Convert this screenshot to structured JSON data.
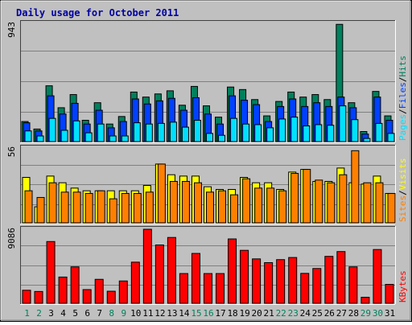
{
  "title": "Daily usage for October 2011",
  "chart_data": [
    {
      "type": "bar",
      "panel": "top",
      "y_max_label": "943",
      "ylim": [
        0,
        943
      ],
      "right_label_parts": [
        "Pages",
        "/",
        "Files",
        "/",
        "Hits"
      ],
      "categories": [
        "1",
        "2",
        "3",
        "4",
        "5",
        "6",
        "7",
        "8",
        "9",
        "10",
        "11",
        "12",
        "13",
        "14",
        "15",
        "16",
        "17",
        "18",
        "19",
        "20",
        "21",
        "22",
        "23",
        "24",
        "25",
        "26",
        "27",
        "28",
        "29",
        "30",
        "31"
      ],
      "weekend_days": [
        "1",
        "2",
        "8",
        "9",
        "15",
        "16",
        "22",
        "23",
        "29",
        "30"
      ],
      "series": [
        {
          "name": "Hits",
          "values": [
            160,
            100,
            445,
            270,
            375,
            170,
            310,
            140,
            200,
            395,
            355,
            380,
            405,
            290,
            440,
            285,
            195,
            435,
            415,
            335,
            205,
            320,
            395,
            355,
            375,
            335,
            935,
            310,
            80,
            400,
            205
          ]
        },
        {
          "name": "Files",
          "values": [
            150,
            85,
            365,
            220,
            305,
            140,
            250,
            110,
            160,
            340,
            300,
            325,
            345,
            250,
            350,
            220,
            140,
            365,
            330,
            295,
            160,
            280,
            340,
            280,
            310,
            280,
            355,
            270,
            60,
            355,
            170
          ]
        },
        {
          "name": "Pages",
          "values": [
            85,
            45,
            185,
            90,
            165,
            70,
            140,
            45,
            45,
            150,
            140,
            145,
            155,
            115,
            170,
            65,
            50,
            185,
            140,
            135,
            110,
            180,
            195,
            125,
            135,
            130,
            285,
            175,
            25,
            145,
            65
          ]
        }
      ],
      "colors": {
        "Hits": "#00805c",
        "Files": "#0040ff",
        "Pages": "#00e0ff"
      }
    },
    {
      "type": "bar",
      "panel": "middle",
      "y_max_label": "56",
      "ylim": [
        0,
        56
      ],
      "right_label_parts": [
        "Sites",
        "/",
        "Visits"
      ],
      "series": [
        {
          "name": "Visits",
          "values": [
            34,
            12,
            35,
            30,
            26,
            24,
            24,
            24,
            24,
            24,
            28,
            44,
            36,
            35,
            35,
            27,
            25,
            25,
            34,
            30,
            30,
            25,
            38,
            40,
            31,
            31,
            41,
            30,
            29,
            35,
            22
          ]
        },
        {
          "name": "Sites",
          "values": [
            24,
            19,
            30,
            23,
            23,
            22,
            24,
            18,
            22,
            22,
            23,
            44,
            31,
            31,
            30,
            23,
            24,
            21,
            33,
            26,
            26,
            24,
            37,
            40,
            32,
            30,
            36,
            54,
            30,
            30,
            22
          ]
        }
      ],
      "colors": {
        "Visits": "#ffff00",
        "Sites": "#ff8000"
      }
    },
    {
      "type": "bar",
      "panel": "bottom",
      "y_max_label": "9086",
      "ylim": [
        0,
        9086
      ],
      "right_label_parts": [
        "KBytes"
      ],
      "series": [
        {
          "name": "KBytes",
          "values": [
            1600,
            1450,
            7580,
            3220,
            4470,
            1680,
            2940,
            1480,
            2740,
            5050,
            9086,
            7160,
            8080,
            3650,
            6120,
            3650,
            3650,
            7900,
            6500,
            5450,
            4990,
            5360,
            5620,
            3670,
            4270,
            5760,
            6350,
            4470,
            740,
            6600,
            2320
          ]
        }
      ],
      "colors": {
        "KBytes": "#ff0000"
      }
    }
  ]
}
